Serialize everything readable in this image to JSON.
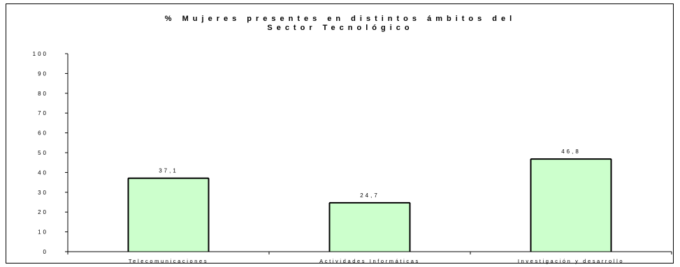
{
  "chart_data": {
    "type": "bar",
    "title_lines": [
      "% Mujeres presentes en distintos ámbitos del",
      "Sector Tecnológico"
    ],
    "categories": [
      "Telecomunicaciones",
      "Actividades Informáticas",
      "Investigación y desarrollo"
    ],
    "values": [
      37.1,
      24.7,
      46.8
    ],
    "value_labels": [
      "37,1",
      "24,7",
      "46,8"
    ],
    "yticks": [
      "0",
      "10",
      "20",
      "30",
      "40",
      "50",
      "60",
      "70",
      "80",
      "90",
      "100"
    ],
    "ylim": [
      0,
      100
    ],
    "bar_color": "#ccffcc",
    "bar_edge_color": "#000000",
    "grid": false,
    "legend": "none"
  }
}
